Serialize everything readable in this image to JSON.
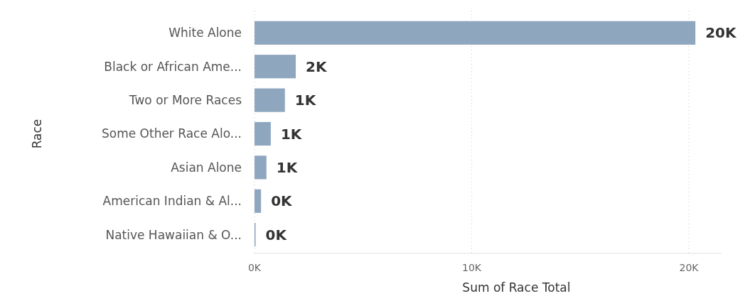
{
  "chart_data": {
    "type": "bar",
    "orientation": "horizontal",
    "xlabel": "Sum of Race Total",
    "ylabel": "Race",
    "categories": [
      "White Alone",
      "Black or African Ame...",
      "Two or More Races",
      "Some Other Race Alo...",
      "Asian Alone",
      "American Indian & Al...",
      "Native Hawaiian & O..."
    ],
    "values": [
      20300,
      1900,
      1400,
      750,
      550,
      300,
      50
    ],
    "value_labels": [
      "20K",
      "2K",
      "1K",
      "1K",
      "1K",
      "0K",
      "0K"
    ],
    "color": "#8fa6bf",
    "xlim": [
      0,
      21500
    ],
    "xticks": [
      {
        "value": 0,
        "label": "0K"
      },
      {
        "value": 10000,
        "label": "10K"
      },
      {
        "value": 20000,
        "label": "20K"
      }
    ],
    "grid": "x"
  }
}
